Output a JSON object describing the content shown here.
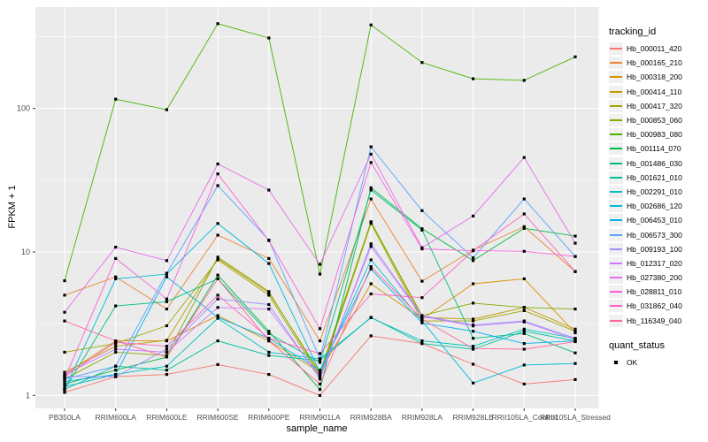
{
  "chart_data": {
    "type": "line",
    "title": "",
    "xlabel": "sample_name",
    "ylabel": "FPKM + 1",
    "y_scale": "log10",
    "ylim": [
      1,
      450
    ],
    "y_ticks": [
      1,
      10,
      100
    ],
    "grid": "on",
    "legend_position": "right",
    "legend_title": "tracking_id",
    "point_legend_title": "quant_status",
    "point_legend_items": [
      {
        "label": "OK",
        "shape": "square",
        "color": "#000000"
      }
    ],
    "point_shape": "square",
    "point_color": "#000000",
    "x_categories": [
      "PB350LA",
      "RRIM600LA",
      "RRIM600LE",
      "RRIM600SE",
      "RRIM600PE",
      "RRIM901LA",
      "RRIM928BA",
      "RRIM928LA",
      "RRIM928LE",
      "RRII105LA_Control",
      "RRII105LA_Stressed"
    ],
    "series": [
      {
        "name": "Hb_000011_420",
        "color": "#F8766D",
        "values": [
          1.05,
          1.35,
          1.4,
          1.64,
          1.4,
          1.0,
          2.6,
          2.3,
          1.65,
          1.2,
          1.29
        ]
      },
      {
        "name": "Hb_000165_210",
        "color": "#EB8335",
        "values": [
          5.0,
          6.7,
          4.0,
          13.1,
          9.0,
          2.4,
          23.4,
          6.25,
          10.3,
          15.0,
          7.3
        ]
      },
      {
        "name": "Hb_000318_200",
        "color": "#D89000",
        "values": [
          1.4,
          2.4,
          2.4,
          3.6,
          2.4,
          1.45,
          6.0,
          3.4,
          6.0,
          6.5,
          2.73
        ]
      },
      {
        "name": "Hb_000414_110",
        "color": "#C09B00",
        "values": [
          1.45,
          2.2,
          2.42,
          9.0,
          5.2,
          1.45,
          16.2,
          3.5,
          3.4,
          4.1,
          2.9
        ]
      },
      {
        "name": "Hb_000417_320",
        "color": "#A3A500",
        "values": [
          2.0,
          2.3,
          3.06,
          8.8,
          5.0,
          1.35,
          15.8,
          3.3,
          3.3,
          3.9,
          2.8
        ]
      },
      {
        "name": "Hb_000853_060",
        "color": "#80AD00",
        "values": [
          1.3,
          2.0,
          1.9,
          9.2,
          5.3,
          1.4,
          16.2,
          3.6,
          4.4,
          4.1,
          4.0
        ]
      },
      {
        "name": "Hb_000983_080",
        "color": "#45B500",
        "values": [
          6.3,
          116,
          98,
          390,
          310,
          7.0,
          382,
          209,
          161,
          157,
          229
        ]
      },
      {
        "name": "Hb_001114_070",
        "color": "#00BA42",
        "values": [
          1.2,
          1.5,
          1.85,
          6.9,
          2.8,
          1.1,
          28,
          14.5,
          8.7,
          14.6,
          12.9
        ]
      },
      {
        "name": "Hb_001486_030",
        "color": "#00BE7C",
        "values": [
          1.1,
          4.2,
          4.5,
          6.5,
          2.7,
          1.7,
          27,
          14.2,
          2.5,
          2.7,
          1.98
        ]
      },
      {
        "name": "Hb_001621_010",
        "color": "#00C09E",
        "values": [
          1.1,
          1.6,
          1.5,
          2.4,
          1.9,
          1.75,
          3.5,
          2.3,
          2.1,
          2.8,
          2.4
        ]
      },
      {
        "name": "Hb_002291_010",
        "color": "#00BFC0",
        "values": [
          1.15,
          1.4,
          1.6,
          3.45,
          2.0,
          1.8,
          3.48,
          2.4,
          2.2,
          2.9,
          2.5
        ]
      },
      {
        "name": "Hb_002686_120",
        "color": "#00BBDB",
        "values": [
          1.1,
          6.5,
          7.0,
          15.8,
          8.3,
          1.45,
          8.8,
          3.3,
          1.22,
          1.63,
          1.67
        ]
      },
      {
        "name": "Hb_006453_010",
        "color": "#00B1F2",
        "values": [
          1.25,
          1.4,
          6.7,
          3.5,
          2.5,
          1.5,
          7.6,
          3.2,
          2.8,
          2.3,
          2.4
        ]
      },
      {
        "name": "Hb_006573_300",
        "color": "#5BA3FF",
        "values": [
          1.3,
          1.6,
          7.1,
          29,
          12.1,
          1.8,
          54,
          19.4,
          9.1,
          23.4,
          9.3
        ]
      },
      {
        "name": "Hb_009193_100",
        "color": "#9C8DFF",
        "values": [
          1.35,
          1.35,
          2.1,
          4.7,
          4.3,
          1.3,
          11.4,
          3.6,
          3.1,
          3.3,
          2.5
        ]
      },
      {
        "name": "Hb_012317_020",
        "color": "#CB79FF",
        "values": [
          1.4,
          2.1,
          2.0,
          4.1,
          4.0,
          1.35,
          10.9,
          3.55,
          3.05,
          3.25,
          2.45
        ]
      },
      {
        "name": "Hb_027380_200",
        "color": "#E96BF0",
        "values": [
          3.8,
          10.8,
          8.7,
          41,
          27,
          8.2,
          48,
          10.7,
          17.8,
          45.5,
          11.5
        ]
      },
      {
        "name": "Hb_028811_010",
        "color": "#FA62DB",
        "values": [
          1.3,
          9.0,
          4.7,
          35,
          12.0,
          2.92,
          42,
          10.5,
          10.2,
          10.1,
          9.3
        ]
      },
      {
        "name": "Hb_031862_040",
        "color": "#FF61C2",
        "values": [
          1.35,
          2.35,
          2.2,
          5.0,
          2.5,
          1.96,
          5.1,
          4.8,
          10.2,
          18.4,
          7.3
        ]
      },
      {
        "name": "Hb_116349_040",
        "color": "#FF689E",
        "values": [
          3.3,
          2.4,
          1.85,
          6.5,
          2.4,
          1.2,
          7.9,
          3.4,
          2.12,
          2.1,
          2.37
        ]
      }
    ]
  },
  "colors": {
    "panel_bg": "#EBEBEB",
    "grid": "#FFFFFF",
    "axis_text": "#4D4D4D",
    "tick": "#333333",
    "title_text": "#000000"
  }
}
